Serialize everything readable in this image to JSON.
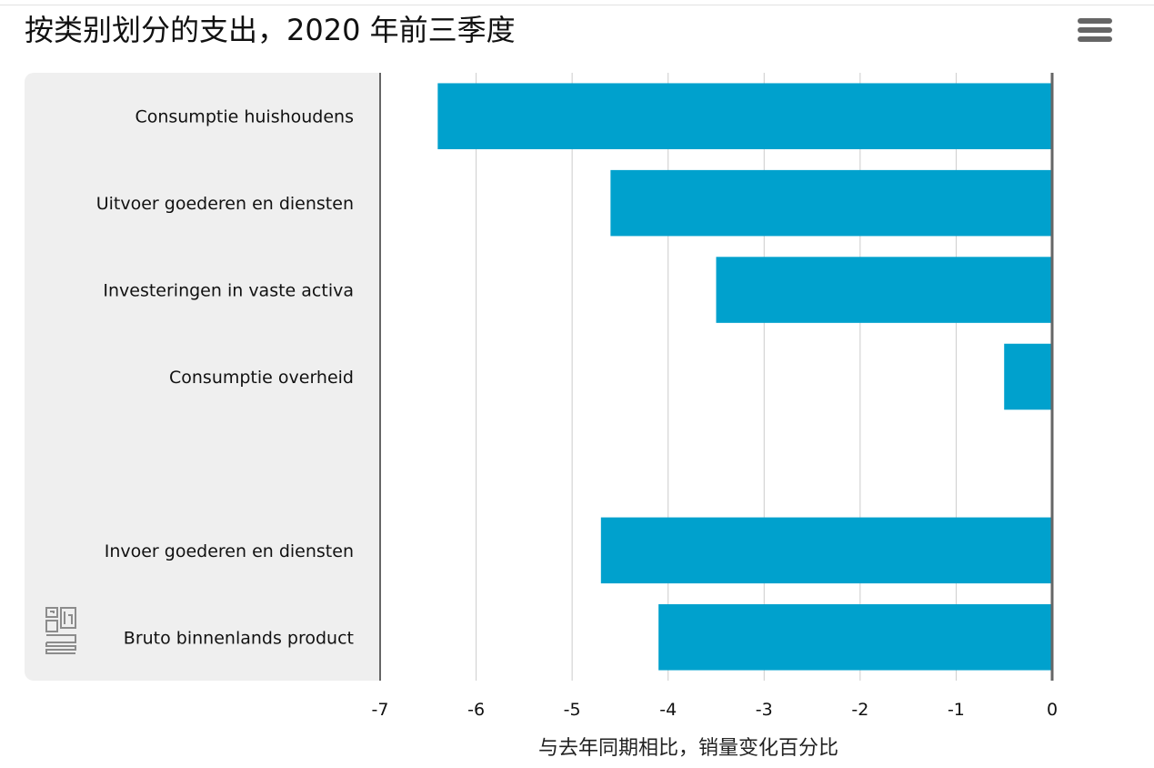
{
  "title": "按类别划分的支出，2020 年前三季度",
  "menu": {
    "icon": "hamburger-menu-icon"
  },
  "logo": {
    "icon": "cbs-logo-icon"
  },
  "colors": {
    "bar": "#00a1cd",
    "panel": "#efefef",
    "grid": "#cccccc",
    "axis": "#666666"
  },
  "chart_data": {
    "type": "bar",
    "orientation": "horizontal",
    "categories": [
      "Consumptie huishoudens",
      "Uitvoer goederen en diensten",
      "Investeringen in vaste activa",
      "Consumptie overheid",
      "",
      "Invoer goederen en diensten",
      "Bruto binnenlands product"
    ],
    "values": [
      -6.4,
      -4.6,
      -3.5,
      -0.5,
      null,
      -4.7,
      -4.1
    ],
    "xlim": [
      -7,
      0
    ],
    "xticks": [
      "-7",
      "-6",
      "-5",
      "-4",
      "-3",
      "-2",
      "-1",
      "0"
    ],
    "xlabel": "与去年同期相比，销量变化百分比",
    "grid": true,
    "legend": "none"
  }
}
